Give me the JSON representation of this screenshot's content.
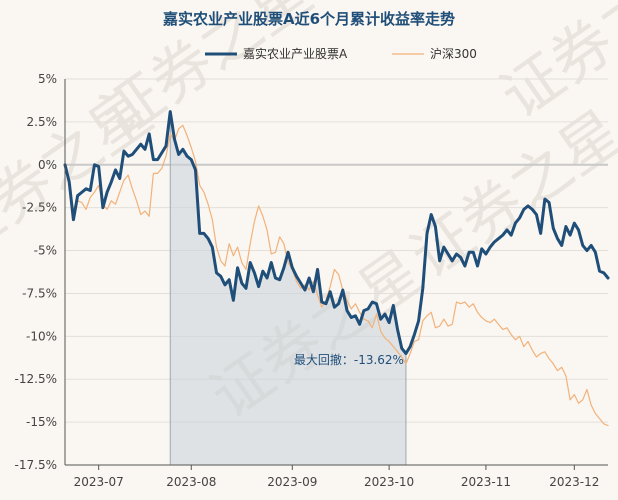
{
  "chart_data": {
    "type": "line",
    "title": "嘉实农业产业股票A近6个月累计收益率走势",
    "xlabel": "",
    "ylabel": "",
    "ylim": [
      -17.5,
      5
    ],
    "y_ticks": [
      "5%",
      "2.5%",
      "0%",
      "-2.5%",
      "-5%",
      "-7.5%",
      "-10%",
      "-12.5%",
      "-15%",
      "-17.5%"
    ],
    "y_tick_values": [
      5,
      2.5,
      0,
      -2.5,
      -5,
      -7.5,
      -10,
      -12.5,
      -15,
      -17.5
    ],
    "x_ticks": [
      "2023-07",
      "2023-08",
      "2023-09",
      "2023-10",
      "2023-11",
      "2023-12"
    ],
    "x_tick_index": [
      8,
      30,
      54,
      77,
      100,
      121
    ],
    "legend_position": "top",
    "grid": true,
    "series": [
      {
        "name": "嘉实农业产业股票A",
        "color": "#1f4e79",
        "values": [
          0,
          -1,
          -3.2,
          -1.8,
          -1.6,
          -1.4,
          -1.5,
          0,
          -0.1,
          -2.5,
          -1.6,
          -1.0,
          -0.3,
          -0.8,
          0.8,
          0.5,
          0.6,
          0.9,
          1.2,
          0.9,
          1.8,
          0.3,
          0.3,
          0.7,
          1.1,
          3.1,
          1.5,
          0.6,
          0.9,
          0.5,
          0.3,
          -0.3,
          -4.0,
          -4.0,
          -4.3,
          -4.8,
          -6.3,
          -6.5,
          -7.0,
          -6.7,
          -7.9,
          -6.0,
          -6.9,
          -7.2,
          -5.7,
          -6.3,
          -7.1,
          -6.2,
          -6.6,
          -5.7,
          -6.6,
          -6.7,
          -6.0,
          -5.1,
          -6.0,
          -6.5,
          -6.9,
          -7.3,
          -6.6,
          -7.4,
          -6.1,
          -8.0,
          -8.1,
          -7.4,
          -8.3,
          -8.1,
          -7.3,
          -8.5,
          -8.9,
          -8.8,
          -9.3,
          -8.5,
          -8.4,
          -8.0,
          -8.1,
          -9.0,
          -8.7,
          -9.2,
          -8.2,
          -9.6,
          -10.7,
          -11.0,
          -10.6,
          -9.9,
          -9.1,
          -7.2,
          -4.0,
          -2.9,
          -3.6,
          -5.6,
          -4.8,
          -5.2,
          -5.6,
          -5.2,
          -5.4,
          -5.9,
          -5.1,
          -5.1,
          -5.9,
          -4.9,
          -5.2,
          -4.8,
          -4.5,
          -4.3,
          -4.1,
          -3.8,
          -4.1,
          -3.4,
          -3.1,
          -2.6,
          -2.4,
          -2.6,
          -2.9,
          -4.0,
          -2.0,
          -2.2,
          -3.7,
          -4.3,
          -4.7,
          -3.6,
          -4.1,
          -3.4,
          -3.8,
          -4.7,
          -5.0,
          -4.7,
          -5.1,
          -6.2,
          -6.3,
          -6.6
        ],
        "line_width": 3
      },
      {
        "name": "沪深300",
        "color": "#f2b27a",
        "values": [
          0,
          -1.2,
          -2.6,
          -2.1,
          -2.2,
          -2.6,
          -1.9,
          -1.6,
          -1.2,
          -2.3,
          -2.6,
          -2.1,
          -2.3,
          -1.6,
          -0.9,
          -0.6,
          -1.4,
          -2.1,
          -2.9,
          -2.7,
          -3.0,
          -0.5,
          -0.5,
          -0.2,
          0.5,
          1.8,
          1.4,
          2.1,
          2.3,
          1.7,
          1.0,
          0.2,
          -1.2,
          -1.6,
          -2.3,
          -3.2,
          -4.8,
          -5.6,
          -5.9,
          -4.6,
          -5.3,
          -4.8,
          -5.7,
          -6.1,
          -4.6,
          -3.3,
          -2.4,
          -3.0,
          -3.8,
          -5.2,
          -5.1,
          -4.2,
          -4.6,
          -5.7,
          -6.1,
          -6.8,
          -7.2,
          -7.0,
          -7.3,
          -6.8,
          -7.6,
          -8.3,
          -7.9,
          -7.1,
          -6.1,
          -6.4,
          -7.3,
          -7.9,
          -8.4,
          -8.1,
          -8.6,
          -9.0,
          -9.1,
          -9.5,
          -8.7,
          -9.7,
          -10.1,
          -10.3,
          -10.6,
          -10.9,
          -11.2,
          -11.6,
          -11.0,
          -10.3,
          -10.2,
          -9.1,
          -8.8,
          -8.6,
          -9.5,
          -9.4,
          -9.0,
          -9.4,
          -9.3,
          -8.0,
          -8.1,
          -8.0,
          -8.3,
          -8.1,
          -8.6,
          -8.9,
          -9.1,
          -9.2,
          -9.0,
          -9.3,
          -9.6,
          -9.5,
          -9.9,
          -10.2,
          -10.0,
          -10.6,
          -10.3,
          -10.8,
          -11.2,
          -11.0,
          -10.9,
          -11.3,
          -11.6,
          -12.0,
          -11.8,
          -12.3,
          -13.7,
          -13.4,
          -13.9,
          -13.7,
          -13.1,
          -14.0,
          -14.5,
          -14.8,
          -15.1,
          -15.2
        ],
        "line_width": 1.2
      }
    ],
    "max_drawdown": {
      "label": "最大回撤：-13.62%",
      "start_index": 25,
      "end_index": 81
    },
    "watermark": "证券之星"
  }
}
